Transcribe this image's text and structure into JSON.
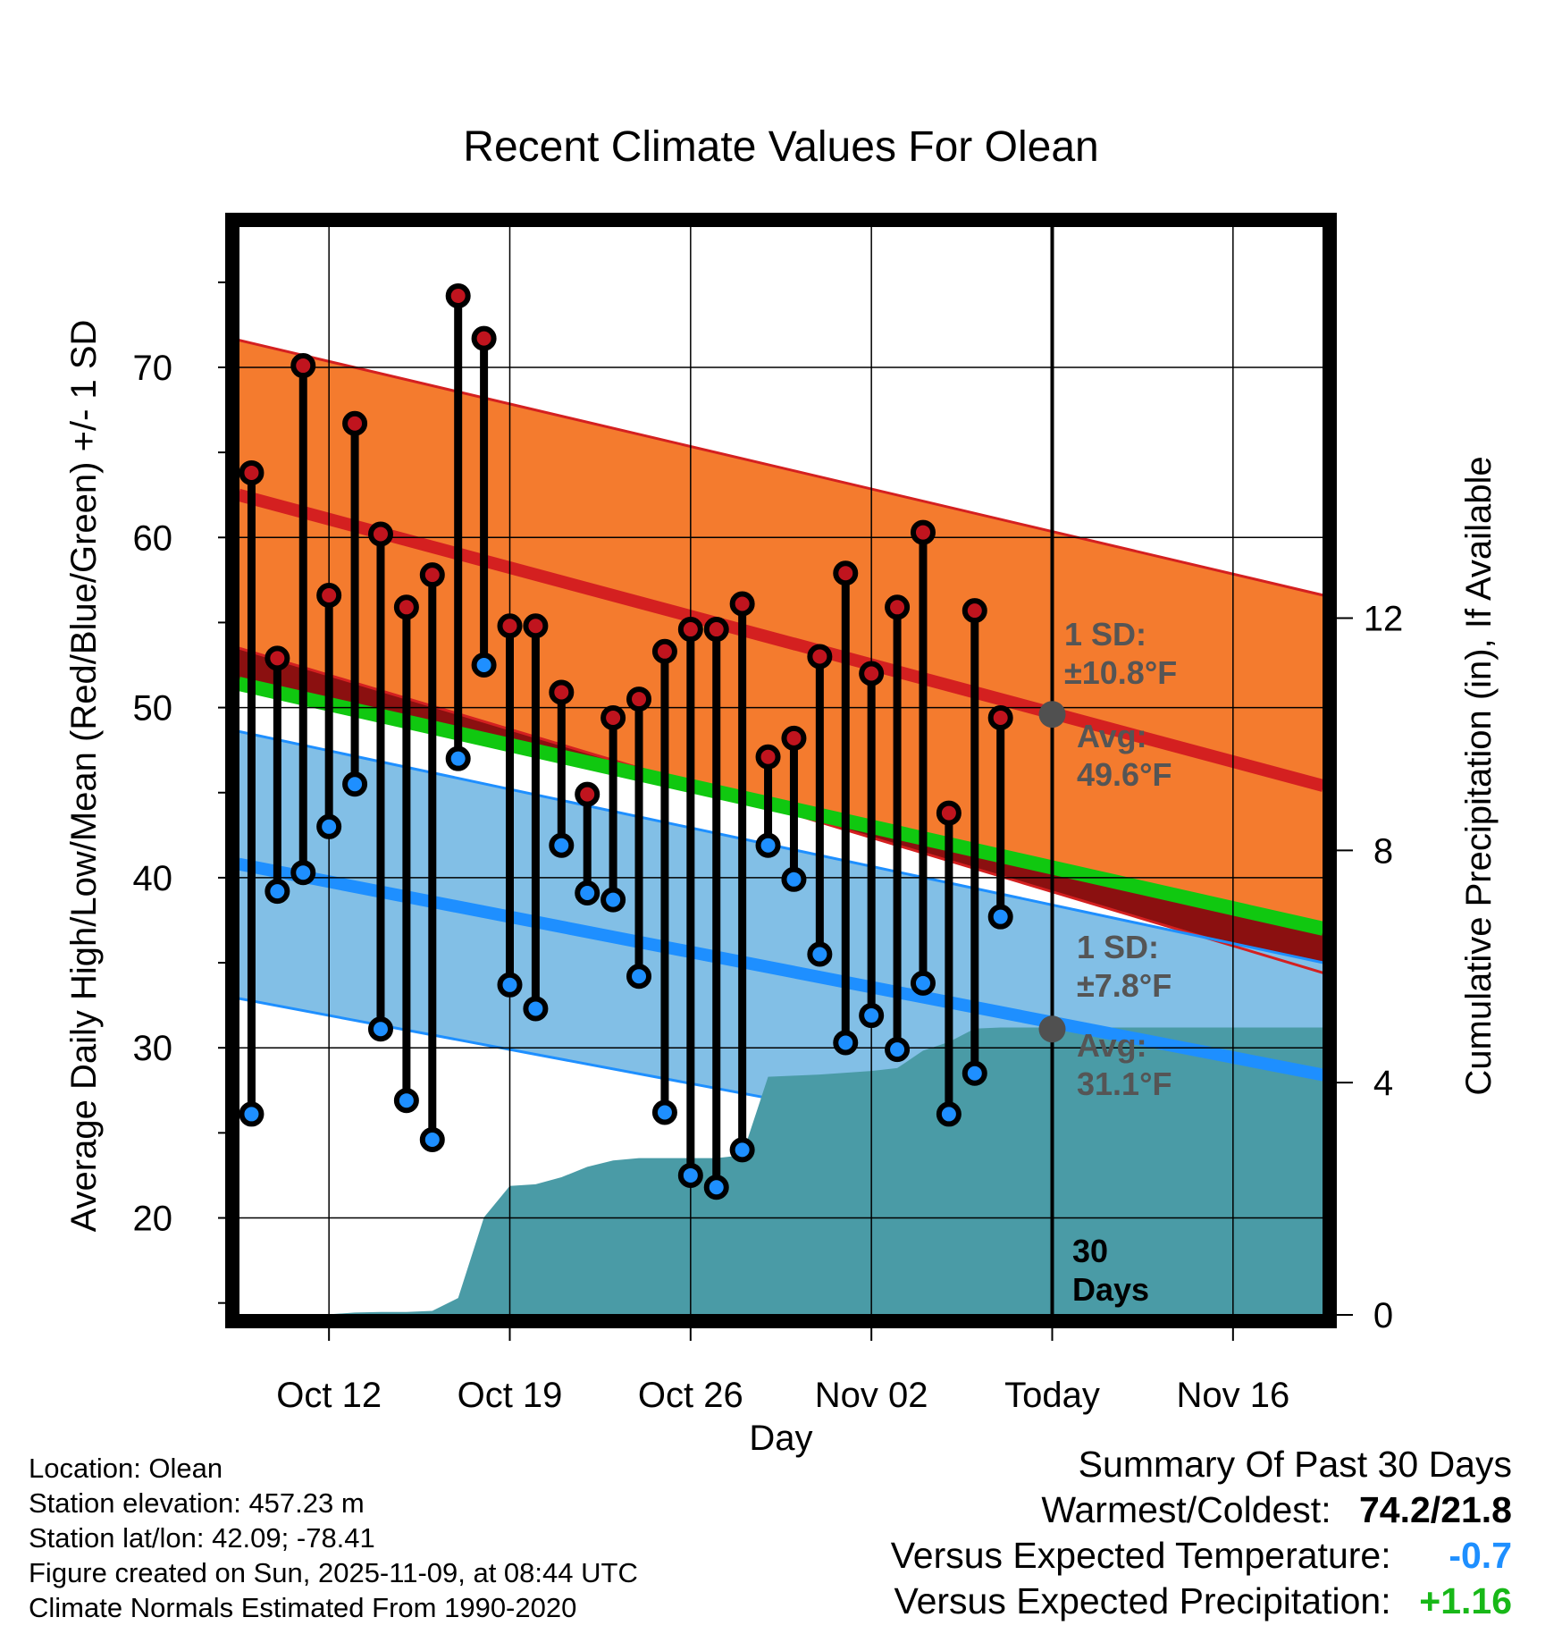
{
  "chart_data": {
    "type": "line",
    "title": "Recent Climate Values For Olean",
    "xlabel": "Day",
    "ylabel": "Average Daily High/Low/Mean (Red/Blue/Green) +/- 1 SD",
    "y2label": "Cumulative Precipitation (in), If Available",
    "xlim": [
      -0.5,
      41.5
    ],
    "ylim": [
      14.3,
      78.3
    ],
    "y2lim": [
      0,
      18.75
    ],
    "xticks": [
      3,
      10,
      17,
      24,
      31,
      38
    ],
    "xtick_labels": [
      "Oct 12",
      "Oct 19",
      "Oct 26",
      "Nov 02",
      "Today",
      "Nov 16"
    ],
    "yticks": [
      20,
      30,
      40,
      50,
      60,
      70
    ],
    "y2ticks": [
      0,
      4,
      8,
      12
    ],
    "grid": true,
    "normals": {
      "high_mean": [
        62.5,
        45.4
      ],
      "high_upper": [
        71.6,
        56.6
      ],
      "high_lower": [
        53.5,
        34.4
      ],
      "low_mean": [
        40.8,
        28.4
      ],
      "low_upper": [
        48.6,
        35.0
      ],
      "low_lower": [
        32.9,
        20.9
      ],
      "mean": [
        51.4,
        37.0
      ]
    },
    "series": [
      {
        "name": "High",
        "color": "#c0141e",
        "x": [
          0,
          1,
          2,
          3,
          4,
          5,
          6,
          7,
          8,
          9,
          10,
          11,
          12,
          13,
          14,
          15,
          16,
          17,
          18,
          19,
          20,
          21,
          22,
          23,
          24,
          25,
          26,
          27,
          28,
          29
        ],
        "values": [
          63.8,
          52.9,
          70.1,
          56.6,
          66.7,
          60.2,
          55.9,
          57.8,
          74.2,
          71.7,
          54.8,
          54.8,
          50.9,
          44.9,
          49.4,
          50.5,
          53.3,
          54.6,
          54.6,
          56.1,
          47.1,
          48.2,
          53.0,
          57.9,
          52.0,
          55.9,
          60.3,
          43.8,
          55.7,
          49.4
        ]
      },
      {
        "name": "Low",
        "color": "#1e8fff",
        "x": [
          0,
          1,
          2,
          3,
          4,
          5,
          6,
          7,
          8,
          9,
          10,
          11,
          12,
          13,
          14,
          15,
          16,
          17,
          18,
          19,
          20,
          21,
          22,
          23,
          24,
          25,
          26,
          27,
          28,
          29
        ],
        "values": [
          26.1,
          39.2,
          40.3,
          43.0,
          45.5,
          31.1,
          26.9,
          24.6,
          47.0,
          52.5,
          33.7,
          32.3,
          41.9,
          39.1,
          38.7,
          34.2,
          26.2,
          22.5,
          21.8,
          24.0,
          41.9,
          39.9,
          35.5,
          30.3,
          31.9,
          29.9,
          33.8,
          26.1,
          28.5,
          37.7
        ]
      }
    ],
    "precipitation": {
      "x": [
        0,
        1,
        2,
        3,
        4,
        5,
        6,
        7,
        8,
        9,
        10,
        11,
        12,
        13,
        14,
        15,
        16,
        17,
        18,
        19,
        20,
        21,
        22,
        23,
        24,
        25,
        26,
        27,
        28,
        29,
        30,
        31,
        41.5
      ],
      "values": [
        0,
        0,
        0,
        0.01,
        0.04,
        0.05,
        0.05,
        0.07,
        0.29,
        1.68,
        2.22,
        2.25,
        2.37,
        2.55,
        2.66,
        2.7,
        2.7,
        2.7,
        2.7,
        2.75,
        4.1,
        4.12,
        4.14,
        4.17,
        4.2,
        4.25,
        4.55,
        4.7,
        4.93,
        4.95,
        4.95,
        4.95,
        4.95
      ]
    },
    "today_x": 31,
    "annotations": [
      {
        "id": "high_sd",
        "text1": "1 SD:",
        "text2": "±10.8°F"
      },
      {
        "id": "high_avg",
        "text1": "Avg:",
        "text2": "49.6°F",
        "value": 49.6
      },
      {
        "id": "low_sd",
        "text1": "1 SD:",
        "text2": "±7.8°F"
      },
      {
        "id": "low_avg",
        "text1": "Avg:",
        "text2": "31.1°F",
        "value": 31.1
      },
      {
        "id": "days",
        "text1": "30",
        "text2": "Days"
      }
    ]
  },
  "station": {
    "location": "Location: Olean",
    "elevation": "Station elevation: 457.23 m",
    "latlon": "Station lat/lon: 42.09; -78.41",
    "created": "Figure created on Sun, 2025-11-09, at 08:44 UTC",
    "normals": "Climate Normals Estimated From 1990-2020"
  },
  "summary": {
    "title": "Summary Of Past 30 Days",
    "warmest_label": "Warmest/Coldest:",
    "warmest_value": "74.2/21.8",
    "temp_label": "Versus Expected Temperature:",
    "temp_value": "-0.7",
    "temp_color": "#1e8fff",
    "precip_label": "Versus Expected Precipitation:",
    "precip_value": "+1.16",
    "precip_color": "#18b818"
  },
  "colors": {
    "high_band": "#f47b2e",
    "high_line": "#d42020",
    "low_band": "#82bfe6",
    "low_line": "#1e8fff",
    "mean_line": "#10c810",
    "precip_fill": "#4a9ba6",
    "high_marker": "#c0141e",
    "low_marker": "#1e8fff",
    "dark_band": "#8b1010"
  }
}
